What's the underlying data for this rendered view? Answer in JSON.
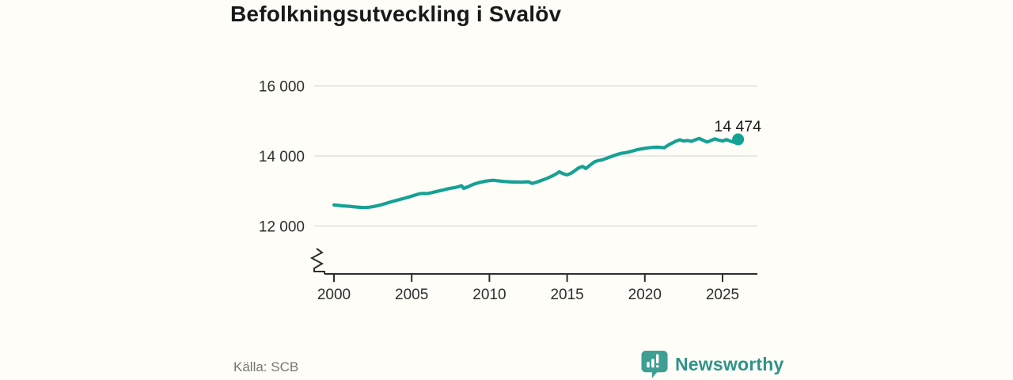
{
  "header": {
    "title": "Befolkningsutveckling i Svalöv"
  },
  "footer": {
    "source": "Källa: SCB",
    "brand": "Newsworthy"
  },
  "colors": {
    "background": "#fffdf8",
    "accent": "#16a195",
    "logo_icon": "#3f9e93",
    "logo_text": "#2e938a",
    "grid": "#e3e1dd",
    "axis": "#2e2e2e",
    "tick_label": "#2e2e2e",
    "title_text": "#191919",
    "source_text": "#757575",
    "end_label_text": "#1a1a1a"
  },
  "chart_data": {
    "type": "line",
    "title": "Befolkningsutveckling i Svalöv",
    "xlabel": "",
    "ylabel": "",
    "grid": true,
    "axis_break": true,
    "xlim": [
      1998.7,
      2027.3
    ],
    "ylim": [
      11550,
      16400
    ],
    "y_ticks": [
      {
        "value": 16000,
        "label": "16 000"
      },
      {
        "value": 14000,
        "label": "14 000"
      },
      {
        "value": 12000,
        "label": "12 000"
      }
    ],
    "x_ticks": [
      {
        "value": 2000,
        "label": "2000"
      },
      {
        "value": 2005,
        "label": "2005"
      },
      {
        "value": 2010,
        "label": "2010"
      },
      {
        "value": 2015,
        "label": "2015"
      },
      {
        "value": 2020,
        "label": "2020"
      },
      {
        "value": 2025,
        "label": "2025"
      }
    ],
    "end_point": {
      "x": 2026,
      "y": 14474,
      "label": "14 474"
    },
    "series": [
      {
        "name": "Befolkning",
        "color": "#16a195",
        "points": [
          [
            2000,
            12600
          ],
          [
            2000.25,
            12588
          ],
          [
            2000.5,
            12575
          ],
          [
            2000.75,
            12568
          ],
          [
            2001,
            12560
          ],
          [
            2001.25,
            12548
          ],
          [
            2001.5,
            12538
          ],
          [
            2001.75,
            12530
          ],
          [
            2002,
            12525
          ],
          [
            2002.25,
            12535
          ],
          [
            2002.5,
            12550
          ],
          [
            2002.75,
            12572
          ],
          [
            2003,
            12600
          ],
          [
            2003.25,
            12632
          ],
          [
            2003.5,
            12665
          ],
          [
            2003.75,
            12698
          ],
          [
            2004,
            12728
          ],
          [
            2004.25,
            12758
          ],
          [
            2004.5,
            12788
          ],
          [
            2004.75,
            12818
          ],
          [
            2005,
            12850
          ],
          [
            2005.25,
            12888
          ],
          [
            2005.5,
            12920
          ],
          [
            2005.75,
            12930
          ],
          [
            2006,
            12925
          ],
          [
            2006.25,
            12948
          ],
          [
            2006.5,
            12975
          ],
          [
            2006.75,
            13000
          ],
          [
            2007,
            13025
          ],
          [
            2007.25,
            13055
          ],
          [
            2007.5,
            13078
          ],
          [
            2007.75,
            13098
          ],
          [
            2008,
            13120
          ],
          [
            2008.2,
            13150
          ],
          [
            2008.35,
            13075
          ],
          [
            2008.6,
            13115
          ],
          [
            2008.8,
            13155
          ],
          [
            2009,
            13195
          ],
          [
            2009.25,
            13228
          ],
          [
            2009.5,
            13255
          ],
          [
            2009.75,
            13280
          ],
          [
            2010,
            13295
          ],
          [
            2010.25,
            13305
          ],
          [
            2010.5,
            13292
          ],
          [
            2010.75,
            13280
          ],
          [
            2011,
            13270
          ],
          [
            2011.25,
            13262
          ],
          [
            2011.5,
            13255
          ],
          [
            2011.75,
            13258
          ],
          [
            2012,
            13252
          ],
          [
            2012.25,
            13258
          ],
          [
            2012.5,
            13262
          ],
          [
            2012.75,
            13215
          ],
          [
            2013,
            13245
          ],
          [
            2013.25,
            13285
          ],
          [
            2013.5,
            13325
          ],
          [
            2013.75,
            13368
          ],
          [
            2014,
            13420
          ],
          [
            2014.25,
            13478
          ],
          [
            2014.5,
            13548
          ],
          [
            2014.75,
            13490
          ],
          [
            2015,
            13462
          ],
          [
            2015.25,
            13505
          ],
          [
            2015.5,
            13580
          ],
          [
            2015.75,
            13660
          ],
          [
            2016,
            13702
          ],
          [
            2016.2,
            13640
          ],
          [
            2016.5,
            13745
          ],
          [
            2016.75,
            13830
          ],
          [
            2017,
            13868
          ],
          [
            2017.25,
            13888
          ],
          [
            2017.5,
            13928
          ],
          [
            2017.75,
            13968
          ],
          [
            2018,
            14008
          ],
          [
            2018.25,
            14048
          ],
          [
            2018.5,
            14078
          ],
          [
            2018.75,
            14092
          ],
          [
            2019,
            14118
          ],
          [
            2019.25,
            14148
          ],
          [
            2019.5,
            14178
          ],
          [
            2019.75,
            14200
          ],
          [
            2020,
            14218
          ],
          [
            2020.25,
            14232
          ],
          [
            2020.5,
            14245
          ],
          [
            2020.75,
            14252
          ],
          [
            2021,
            14245
          ],
          [
            2021.25,
            14235
          ],
          [
            2021.5,
            14308
          ],
          [
            2021.75,
            14368
          ],
          [
            2022,
            14425
          ],
          [
            2022.25,
            14462
          ],
          [
            2022.5,
            14428
          ],
          [
            2022.75,
            14442
          ],
          [
            2023,
            14418
          ],
          [
            2023.25,
            14462
          ],
          [
            2023.5,
            14502
          ],
          [
            2023.75,
            14448
          ],
          [
            2024,
            14398
          ],
          [
            2024.25,
            14442
          ],
          [
            2024.5,
            14488
          ],
          [
            2024.75,
            14452
          ],
          [
            2025,
            14428
          ],
          [
            2025.25,
            14468
          ],
          [
            2025.5,
            14425
          ],
          [
            2025.75,
            14392
          ],
          [
            2026,
            14474
          ]
        ]
      }
    ]
  }
}
